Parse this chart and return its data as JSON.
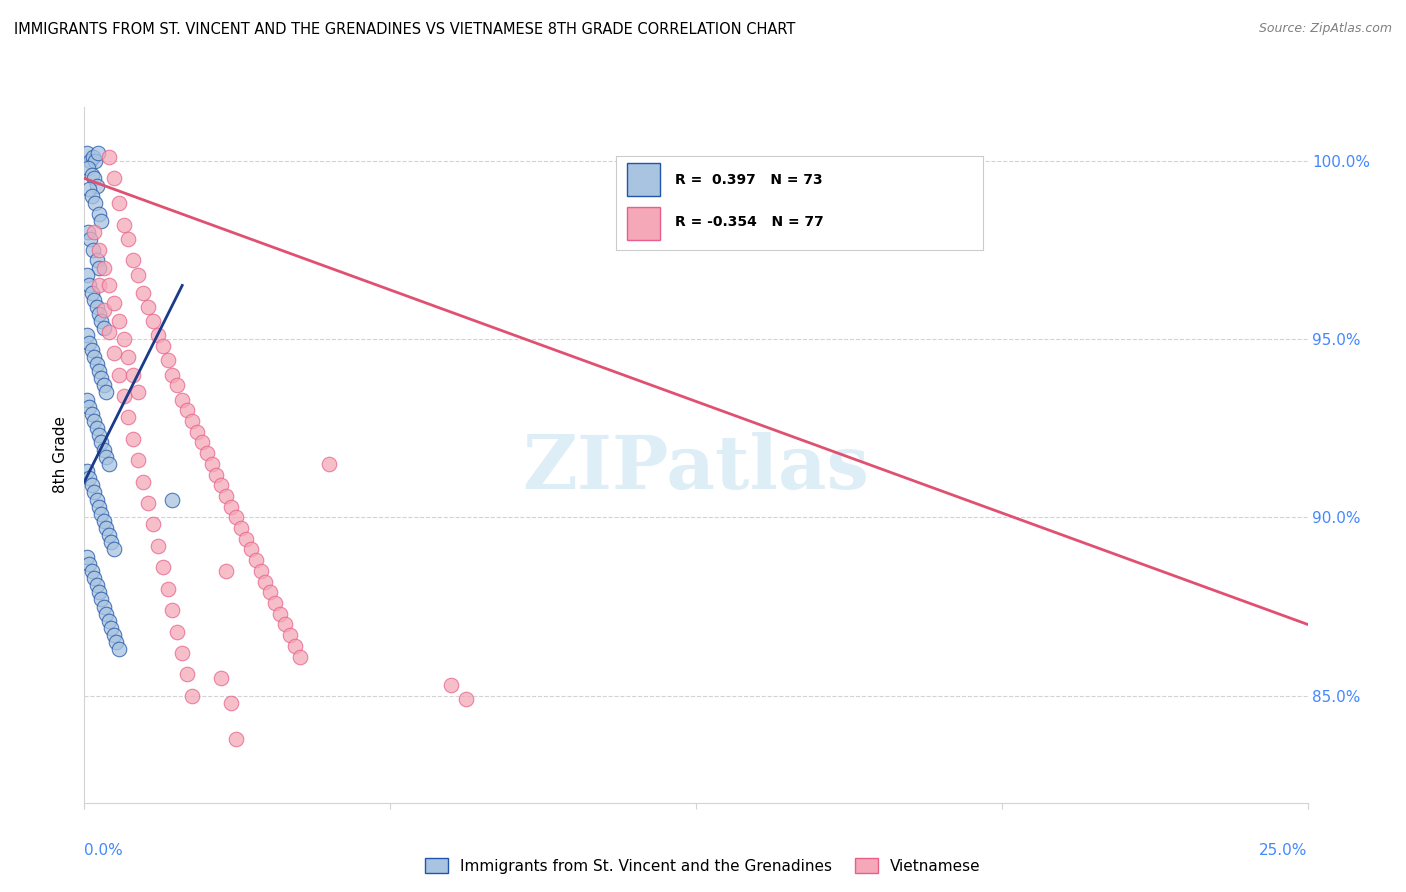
{
  "title": "IMMIGRANTS FROM ST. VINCENT AND THE GRENADINES VS VIETNAMESE 8TH GRADE CORRELATION CHART",
  "source": "Source: ZipAtlas.com",
  "ylabel": "8th Grade",
  "y_ticks": [
    85.0,
    90.0,
    95.0,
    100.0
  ],
  "xlim": [
    0.0,
    25.0
  ],
  "ylim": [
    82.0,
    101.5
  ],
  "legend_blue_label": "Immigrants from St. Vincent and the Grenadines",
  "legend_pink_label": "Vietnamese",
  "blue_R": 0.397,
  "blue_N": 73,
  "pink_R": -0.354,
  "pink_N": 77,
  "blue_color": "#a8c4e0",
  "pink_color": "#f4a8b8",
  "blue_edge_color": "#2255aa",
  "pink_edge_color": "#e8608a",
  "blue_line_color": "#1a3a8a",
  "pink_line_color": "#e05070",
  "watermark_color": "#d0e8f5",
  "blue_x": [
    0.05,
    0.12,
    0.18,
    0.22,
    0.28,
    0.08,
    0.15,
    0.2,
    0.25,
    0.1,
    0.15,
    0.22,
    0.3,
    0.35,
    0.08,
    0.12,
    0.18,
    0.25,
    0.3,
    0.05,
    0.1,
    0.15,
    0.2,
    0.25,
    0.3,
    0.35,
    0.4,
    0.05,
    0.1,
    0.15,
    0.2,
    0.25,
    0.3,
    0.35,
    0.4,
    0.45,
    0.05,
    0.1,
    0.15,
    0.2,
    0.25,
    0.3,
    0.35,
    0.4,
    0.45,
    0.5,
    0.05,
    0.1,
    0.15,
    0.2,
    0.25,
    0.3,
    0.35,
    0.4,
    0.45,
    0.5,
    0.55,
    0.6,
    0.05,
    0.1,
    0.15,
    0.2,
    0.25,
    0.3,
    0.35,
    0.4,
    0.45,
    0.5,
    0.55,
    0.6,
    0.65,
    0.7,
    1.8
  ],
  "blue_y": [
    100.2,
    100.0,
    100.1,
    100.0,
    100.2,
    99.8,
    99.6,
    99.5,
    99.3,
    99.2,
    99.0,
    98.8,
    98.5,
    98.3,
    98.0,
    97.8,
    97.5,
    97.2,
    97.0,
    96.8,
    96.5,
    96.3,
    96.1,
    95.9,
    95.7,
    95.5,
    95.3,
    95.1,
    94.9,
    94.7,
    94.5,
    94.3,
    94.1,
    93.9,
    93.7,
    93.5,
    93.3,
    93.1,
    92.9,
    92.7,
    92.5,
    92.3,
    92.1,
    91.9,
    91.7,
    91.5,
    91.3,
    91.1,
    90.9,
    90.7,
    90.5,
    90.3,
    90.1,
    89.9,
    89.7,
    89.5,
    89.3,
    89.1,
    88.9,
    88.7,
    88.5,
    88.3,
    88.1,
    87.9,
    87.7,
    87.5,
    87.3,
    87.1,
    86.9,
    86.7,
    86.5,
    86.3,
    90.5
  ],
  "pink_x": [
    0.5,
    0.6,
    0.7,
    0.8,
    0.9,
    1.0,
    1.1,
    1.2,
    1.3,
    1.4,
    1.5,
    1.6,
    1.7,
    1.8,
    1.9,
    2.0,
    2.1,
    2.2,
    2.3,
    2.4,
    2.5,
    2.6,
    2.7,
    2.8,
    2.9,
    3.0,
    3.1,
    3.2,
    3.3,
    3.4,
    3.5,
    3.6,
    3.7,
    3.8,
    3.9,
    4.0,
    4.1,
    4.2,
    4.3,
    4.4,
    0.3,
    0.4,
    0.5,
    0.6,
    0.7,
    0.8,
    0.9,
    1.0,
    1.1,
    1.2,
    1.3,
    1.4,
    1.5,
    1.6,
    1.7,
    1.8,
    1.9,
    2.0,
    2.1,
    2.2,
    0.2,
    0.3,
    0.4,
    0.5,
    0.6,
    0.7,
    0.8,
    0.9,
    1.0,
    1.1,
    5.0,
    7.5,
    7.8,
    2.8,
    3.0,
    3.1,
    2.9
  ],
  "pink_y": [
    100.1,
    99.5,
    98.8,
    98.2,
    97.8,
    97.2,
    96.8,
    96.3,
    95.9,
    95.5,
    95.1,
    94.8,
    94.4,
    94.0,
    93.7,
    93.3,
    93.0,
    92.7,
    92.4,
    92.1,
    91.8,
    91.5,
    91.2,
    90.9,
    90.6,
    90.3,
    90.0,
    89.7,
    89.4,
    89.1,
    88.8,
    88.5,
    88.2,
    87.9,
    87.6,
    87.3,
    87.0,
    86.7,
    86.4,
    86.1,
    96.5,
    95.8,
    95.2,
    94.6,
    94.0,
    93.4,
    92.8,
    92.2,
    91.6,
    91.0,
    90.4,
    89.8,
    89.2,
    88.6,
    88.0,
    87.4,
    86.8,
    86.2,
    85.6,
    85.0,
    98.0,
    97.5,
    97.0,
    96.5,
    96.0,
    95.5,
    95.0,
    94.5,
    94.0,
    93.5,
    91.5,
    85.3,
    84.9,
    85.5,
    84.8,
    83.8,
    88.5
  ]
}
